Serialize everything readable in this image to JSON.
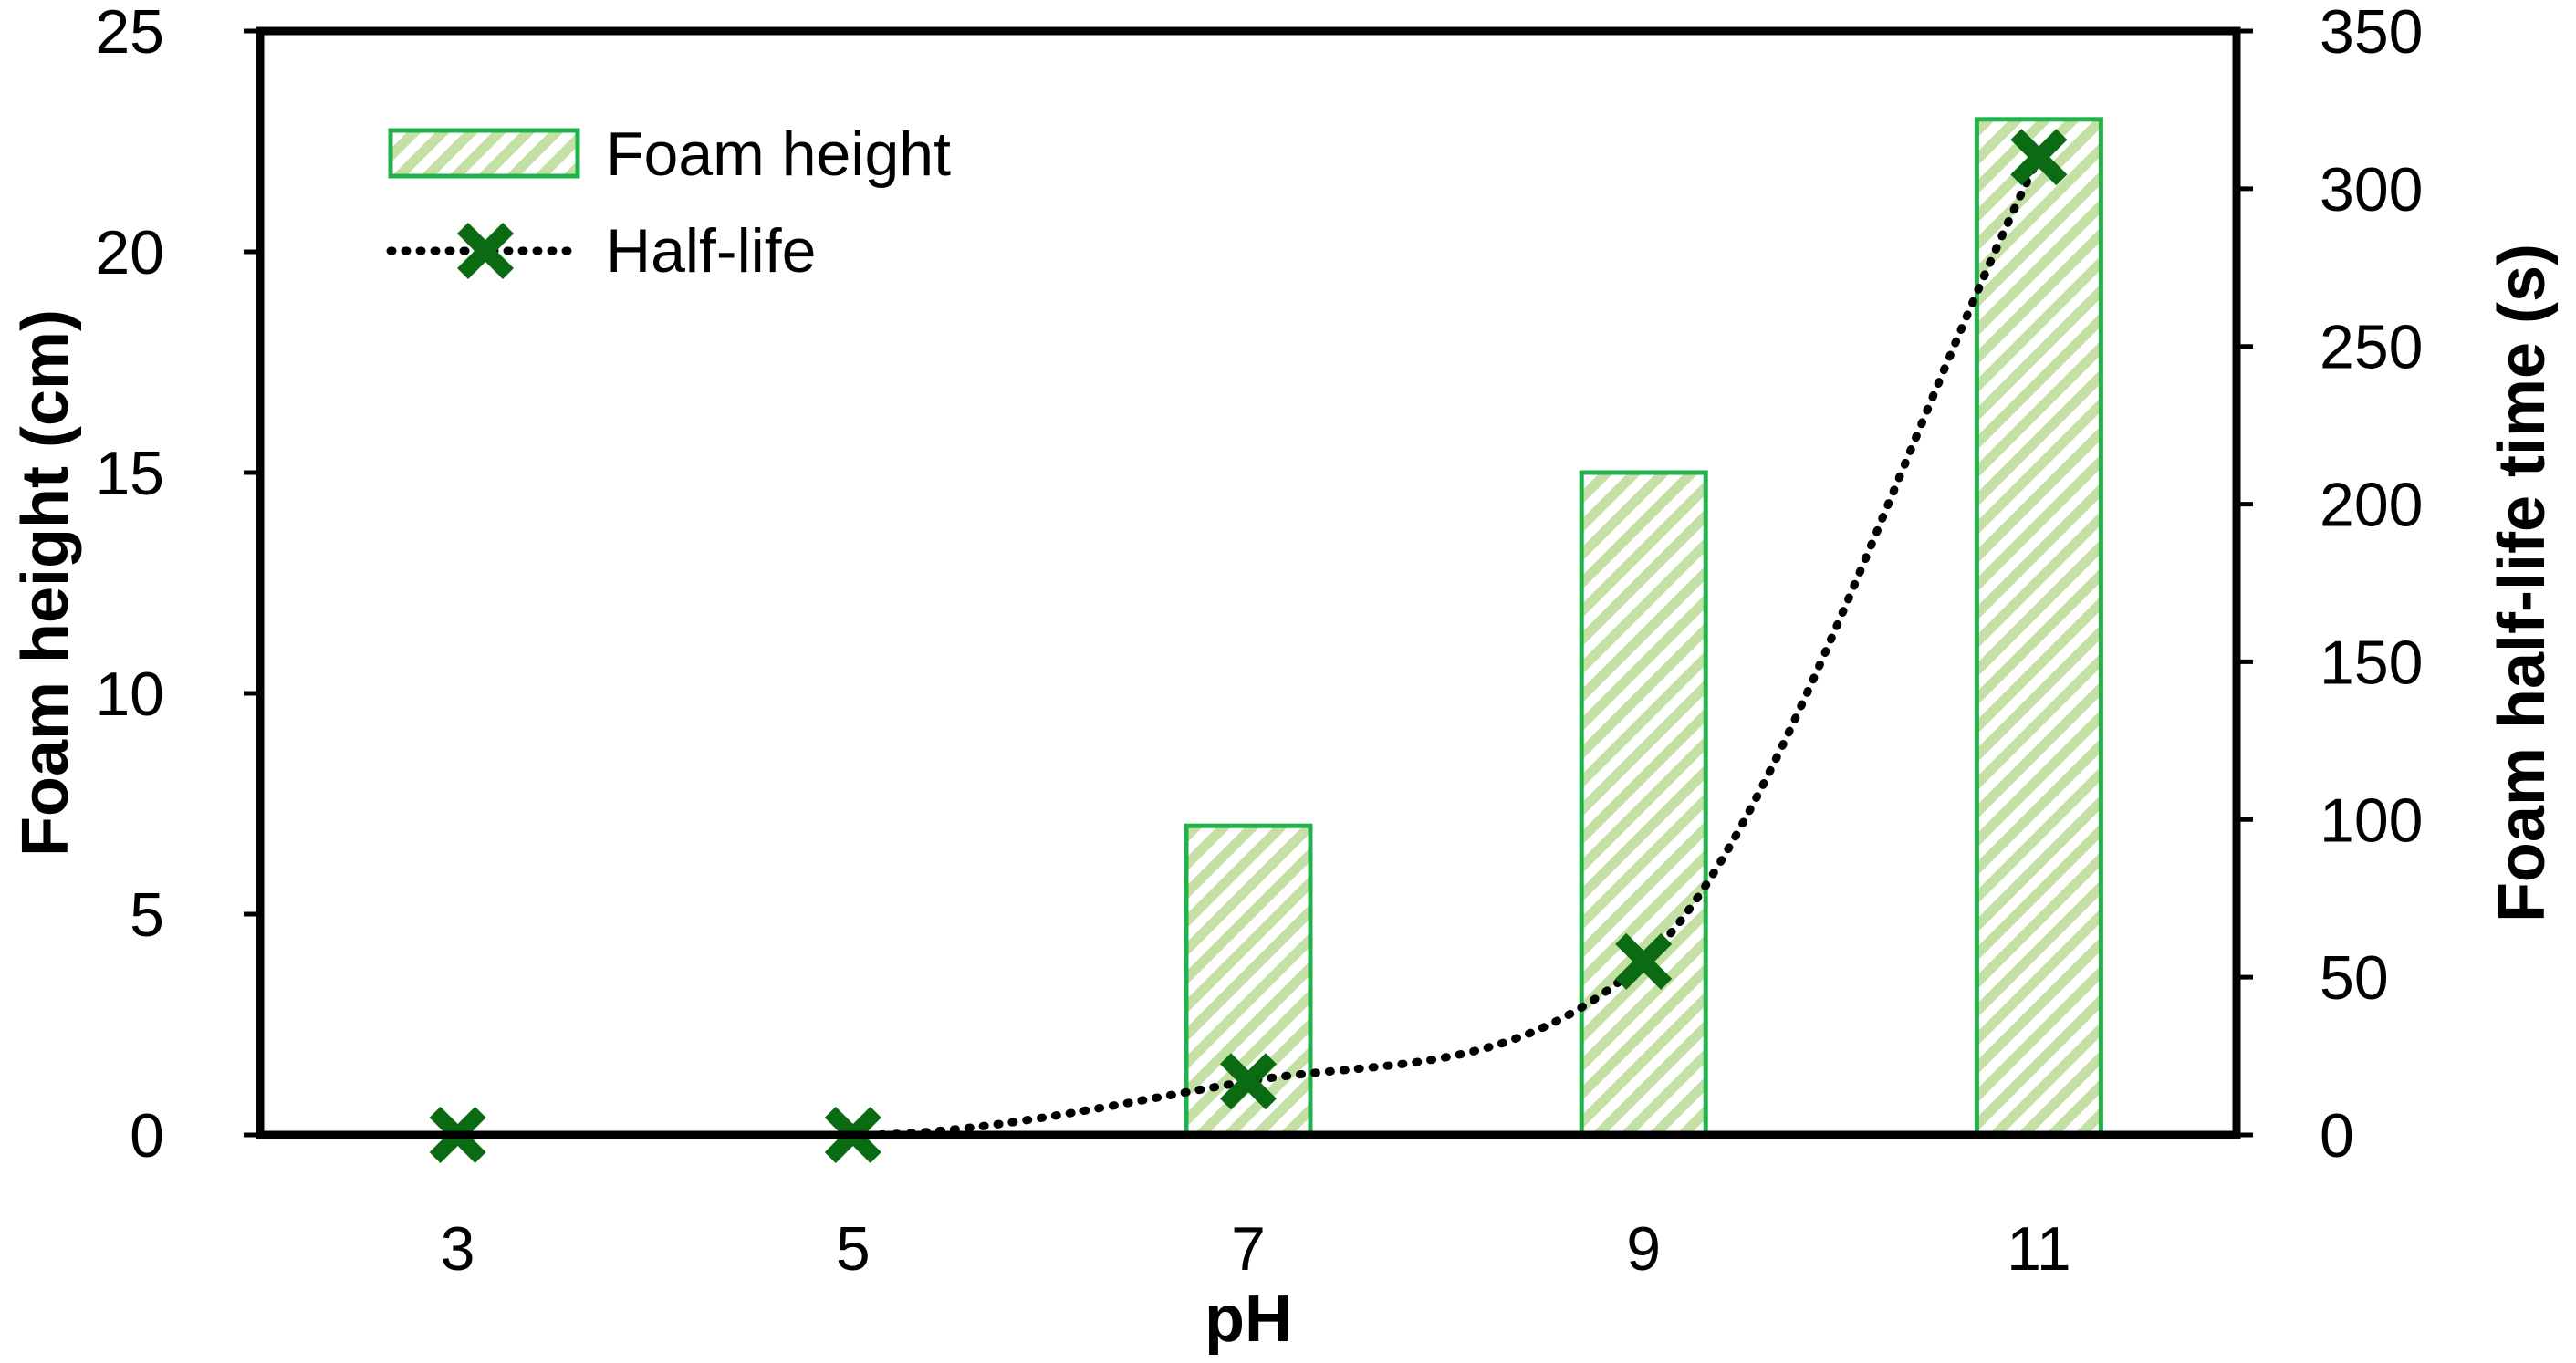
{
  "chart_data": {
    "type": "bar",
    "categories": [
      "3",
      "5",
      "7",
      "9",
      "11"
    ],
    "series": [
      {
        "name": "Foam height",
        "type": "bar",
        "axis": "left",
        "values": [
          0,
          0,
          7,
          15,
          23
        ]
      },
      {
        "name": "Half-life",
        "type": "line",
        "axis": "right",
        "values": [
          0,
          0,
          17,
          55,
          310
        ]
      }
    ],
    "xlabel": "pH",
    "ylabel": "Foam height (cm)",
    "y2label": "Foam half-life time (s)",
    "ylim": [
      0,
      25
    ],
    "y2lim": [
      0,
      350
    ],
    "yticks": [
      "0",
      "5",
      "10",
      "15",
      "20",
      "25"
    ],
    "y2ticks": [
      "0",
      "50",
      "100",
      "150",
      "200",
      "250",
      "300",
      "350"
    ],
    "grid": false,
    "legend_position": "top-left",
    "colors": {
      "bar_edge": "#22b04b",
      "bar_hatch": "#c5e0a5",
      "marker": "#0a6b12",
      "line": "#000000",
      "axis": "#000000"
    }
  }
}
